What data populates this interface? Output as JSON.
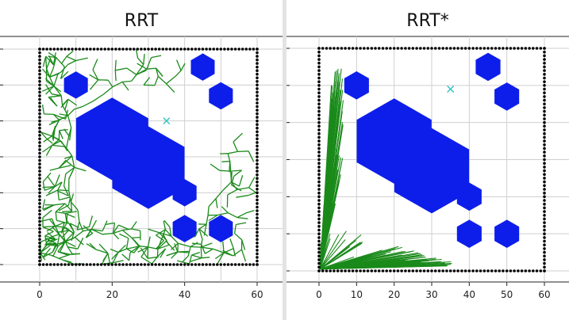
{
  "chart_data": [
    {
      "type": "scatter",
      "title": "RRT",
      "xlim": [
        0,
        60
      ],
      "ylim": [
        0,
        60
      ],
      "x_ticks": [
        0,
        20,
        40,
        60
      ],
      "grid": true,
      "goal": {
        "x": 35,
        "y": 40
      },
      "obstacles": [
        {
          "shape": "hexagon",
          "x": 10,
          "y": 50,
          "r": 3.8
        },
        {
          "shape": "hexagon",
          "x": 45,
          "y": 55,
          "r": 3.8
        },
        {
          "shape": "hexagon",
          "x": 50,
          "y": 47,
          "r": 3.8
        },
        {
          "shape": "hexagon",
          "x": 20,
          "y": 35,
          "r": 11.5
        },
        {
          "shape": "hexagon",
          "x": 30,
          "y": 27,
          "r": 11.5
        },
        {
          "shape": "hexagon",
          "x": 40,
          "y": 20,
          "r": 3.8
        },
        {
          "shape": "hexagon",
          "x": 40,
          "y": 10,
          "r": 3.8
        },
        {
          "shape": "hexagon",
          "x": 50,
          "y": 10,
          "r": 3.8
        }
      ],
      "boundary": {
        "x_min": 0,
        "x_max": 60,
        "y_min": 0,
        "y_max": 60
      },
      "tree_color": "#1a8a1a"
    },
    {
      "type": "scatter",
      "title": "RRT*",
      "xlim": [
        0,
        60
      ],
      "ylim": [
        0,
        60
      ],
      "x_ticks": [
        0,
        10,
        20,
        30,
        40,
        50,
        60
      ],
      "grid": true,
      "goal": {
        "x": 35,
        "y": 49
      },
      "obstacles": [
        {
          "shape": "hexagon",
          "x": 10,
          "y": 50,
          "r": 3.8
        },
        {
          "shape": "hexagon",
          "x": 45,
          "y": 55,
          "r": 3.8
        },
        {
          "shape": "hexagon",
          "x": 50,
          "y": 47,
          "r": 3.8
        },
        {
          "shape": "hexagon",
          "x": 20,
          "y": 35,
          "r": 11.5
        },
        {
          "shape": "hexagon",
          "x": 30,
          "y": 27,
          "r": 11.5
        },
        {
          "shape": "hexagon",
          "x": 40,
          "y": 20,
          "r": 3.8
        },
        {
          "shape": "hexagon",
          "x": 40,
          "y": 10,
          "r": 3.8
        },
        {
          "shape": "hexagon",
          "x": 50,
          "y": 10,
          "r": 3.8
        }
      ],
      "boundary": {
        "x_min": 0,
        "x_max": 60,
        "y_min": 0,
        "y_max": 60
      },
      "tree_color": "#1a8a1a"
    }
  ],
  "colors": {
    "obstacle": "#0d1eea",
    "boundary": "#000000",
    "goal": "#2ec4c4",
    "grid": "#cfcfcf",
    "tree": "#1a8a1a"
  }
}
